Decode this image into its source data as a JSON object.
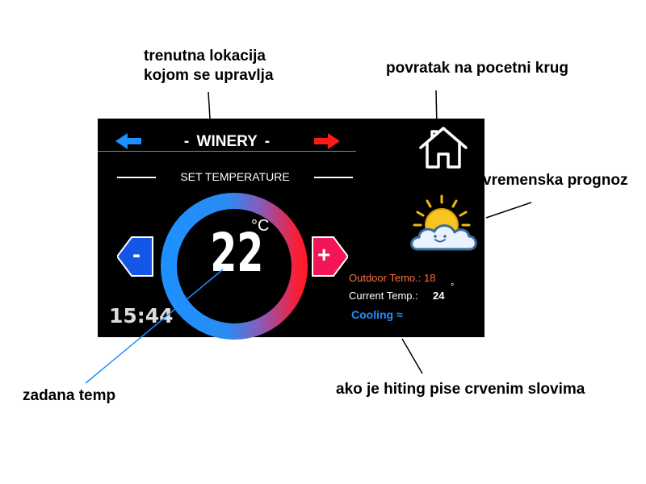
{
  "annotations": {
    "location": "trenutna lokacija\nkojom se upravlja",
    "home": "povratak na pocetni krug",
    "forecast": "vremenska prognoz",
    "set_temp": "zadana temp",
    "heating": "ako je hiting pise crvenim slovima"
  },
  "screen": {
    "location": "-  WINERY  -",
    "set_temperature_label": "SET TEMPERATURE",
    "set_temperature_value": "22",
    "set_temperature_unit": "°C",
    "decrease_label": "-",
    "increase_label": "+",
    "clock": "15:44",
    "outdoor_temp": "Outdoor Temo.: 18",
    "current_temp_label": "Current Temp.:",
    "current_temp_value": "24",
    "current_temp_unit": "°",
    "mode": "Cooling ≈",
    "icons": [
      "arrow-left-icon",
      "arrow-right-icon",
      "home-icon",
      "sun-cloud-icon"
    ],
    "colors": {
      "left_arrow": "#1e90ff",
      "right_arrow": "#ff1a1a",
      "decrease_button": "#1456e8",
      "increase_button": "#f21656",
      "dial_cool": "#1e90ff",
      "dial_hot": "#ff1a2e",
      "outdoor_text": "#ff6f3c",
      "mode_text": "#1e90ff"
    }
  }
}
